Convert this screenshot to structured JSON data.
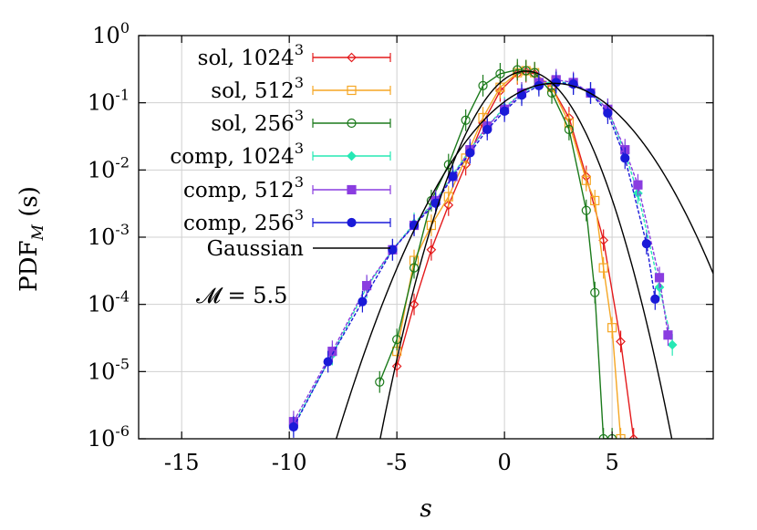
{
  "chart_data": {
    "type": "line",
    "xlabel": "s",
    "ylabel_main": "PDF",
    "ylabel_sub": "M",
    "ylabel_suffix": " (s)",
    "xlim": [
      -17,
      9.7
    ],
    "ylim": [
      1e-06,
      1
    ],
    "log_y": true,
    "x_ticks": [
      {
        "value": -15,
        "label": "-15"
      },
      {
        "value": -10,
        "label": "-10"
      },
      {
        "value": -5,
        "label": "-5"
      },
      {
        "value": 0,
        "label": "0"
      },
      {
        "value": 5,
        "label": "5"
      }
    ],
    "y_ticks": [
      {
        "value": 1,
        "base": "10",
        "exp": "0"
      },
      {
        "value": 0.1,
        "base": "10",
        "exp": "-1"
      },
      {
        "value": 0.01,
        "base": "10",
        "exp": "-2"
      },
      {
        "value": 0.001,
        "base": "10",
        "exp": "-3"
      },
      {
        "value": 0.0001,
        "base": "10",
        "exp": "-4"
      },
      {
        "value": 1e-05,
        "base": "10",
        "exp": "-5"
      },
      {
        "value": 1e-06,
        "base": "10",
        "exp": "-6"
      }
    ],
    "annotation": {
      "text": "𝓜 = 5.5"
    },
    "series": [
      {
        "name": "sol, 1024",
        "sup": "3",
        "color": "#e41a1c",
        "marker": "diamond-open",
        "x": [
          -5.0,
          -4.2,
          -3.4,
          -2.6,
          -1.8,
          -1.0,
          -0.2,
          0.6,
          1.0,
          1.4,
          2.2,
          3.0,
          3.8,
          4.6,
          5.4,
          6.0
        ],
        "y": [
          1.2e-05,
          0.0001,
          0.00065,
          0.003,
          0.012,
          0.05,
          0.15,
          0.27,
          0.29,
          0.27,
          0.17,
          0.06,
          0.008,
          0.0009,
          2.8e-05,
          1e-06
        ]
      },
      {
        "name": "sol, 512",
        "sup": "3",
        "color": "#f5a623",
        "marker": "square-open",
        "x": [
          -5.0,
          -4.2,
          -3.4,
          -2.6,
          -1.8,
          -1.0,
          -0.2,
          0.6,
          1.0,
          1.4,
          2.2,
          3.0,
          3.8,
          4.2,
          4.6,
          5.0,
          5.4
        ],
        "y": [
          2e-05,
          0.00045,
          0.0015,
          0.004,
          0.015,
          0.06,
          0.17,
          0.28,
          0.3,
          0.28,
          0.17,
          0.05,
          0.007,
          0.0035,
          0.00035,
          4.5e-05,
          1e-06
        ]
      },
      {
        "name": "sol, 256",
        "sup": "3",
        "color": "#1b7a1b",
        "marker": "circle-open",
        "x": [
          -5.8,
          -5.0,
          -4.2,
          -3.4,
          -2.6,
          -1.8,
          -1.0,
          -0.2,
          0.6,
          1.0,
          1.4,
          2.2,
          3.0,
          3.8,
          4.2,
          4.6,
          5.0
        ],
        "y": [
          7e-06,
          3e-05,
          0.00035,
          0.0035,
          0.012,
          0.055,
          0.18,
          0.27,
          0.31,
          0.3,
          0.28,
          0.14,
          0.04,
          0.0025,
          0.00015,
          1e-06,
          1e-06
        ]
      },
      {
        "name": "comp, 1024",
        "sup": "3",
        "color": "#26e8b4",
        "marker": "diamond-filled",
        "x": [
          -9.8,
          -8.0,
          -6.4,
          -5.2,
          -4.2,
          -3.2,
          -2.4,
          -1.6,
          -0.8,
          0,
          0.8,
          1.6,
          2.4,
          3.2,
          4.0,
          4.8,
          5.6,
          6.2,
          7.2,
          7.8
        ],
        "y": [
          1.6e-06,
          1.8e-05,
          0.00018,
          0.00065,
          0.0016,
          0.0035,
          0.0085,
          0.02,
          0.045,
          0.085,
          0.14,
          0.19,
          0.21,
          0.19,
          0.14,
          0.08,
          0.018,
          0.0045,
          0.00018,
          2.5e-05
        ]
      },
      {
        "name": "comp, 512",
        "sup": "3",
        "color": "#8a3de0",
        "marker": "square-filled",
        "x": [
          -9.8,
          -8.0,
          -6.4,
          -5.2,
          -4.2,
          -3.2,
          -2.4,
          -1.6,
          -0.8,
          0,
          0.8,
          1.6,
          2.4,
          3.2,
          4.0,
          4.8,
          5.6,
          6.2,
          7.2,
          7.6
        ],
        "y": [
          1.8e-06,
          2e-05,
          0.00019,
          0.00065,
          0.0015,
          0.0035,
          0.008,
          0.02,
          0.045,
          0.08,
          0.14,
          0.2,
          0.22,
          0.2,
          0.14,
          0.08,
          0.02,
          0.006,
          0.00025,
          3.5e-05
        ]
      },
      {
        "name": "comp, 256",
        "sup": "3",
        "color": "#1a1ad8",
        "marker": "circle-filled",
        "x": [
          -9.8,
          -8.2,
          -6.6,
          -5.2,
          -4.2,
          -3.2,
          -2.4,
          -1.6,
          -0.8,
          0,
          0.8,
          1.6,
          2.4,
          3.2,
          4.0,
          4.8,
          5.6,
          6.6,
          7.0
        ],
        "y": [
          1.5e-06,
          1.4e-05,
          0.00011,
          0.00065,
          0.0015,
          0.0032,
          0.008,
          0.018,
          0.04,
          0.075,
          0.13,
          0.18,
          0.2,
          0.19,
          0.14,
          0.07,
          0.015,
          0.0008,
          0.00012
        ]
      },
      {
        "name": "Gaussian",
        "sup": "",
        "color": "#000000",
        "marker": "none",
        "gaussians": [
          {
            "mu": 1.0,
            "sigma": 1.35
          },
          {
            "mu": 2.3,
            "sigma": 2.05
          }
        ]
      }
    ]
  }
}
